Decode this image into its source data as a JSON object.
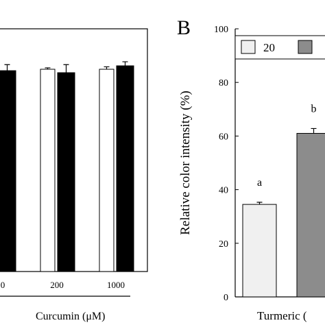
{
  "chart_data": [
    {
      "type": "bar",
      "x_label": "Curcumin (μM)",
      "categories": [
        "0",
        "200",
        "1000"
      ],
      "ylim": [
        0,
        120
      ],
      "series": [
        {
          "color": "#ffffff",
          "values": [
            null,
            100,
            100
          ],
          "errors": [
            null,
            0.7,
            1.2
          ]
        },
        {
          "color": "#000000",
          "values": [
            99.3,
            98.3,
            101.7
          ],
          "errors": [
            3,
            4,
            2
          ]
        }
      ]
    },
    {
      "type": "bar",
      "panel_label": "B",
      "y_label": "Relative color intensity (%)",
      "x_label": "Turmeric (",
      "ylim": [
        0,
        100
      ],
      "yticks": [
        0,
        20,
        40,
        60,
        80,
        100
      ],
      "series": [
        {
          "name": "20",
          "color": "#f0f0f0",
          "values": [
            34.5
          ],
          "errors": [
            0.8
          ],
          "annotations": [
            "a"
          ]
        },
        {
          "color": "#8c8c8c",
          "values": [
            61
          ],
          "errors": [
            1.8
          ],
          "annotations": [
            "b"
          ]
        }
      ]
    }
  ]
}
